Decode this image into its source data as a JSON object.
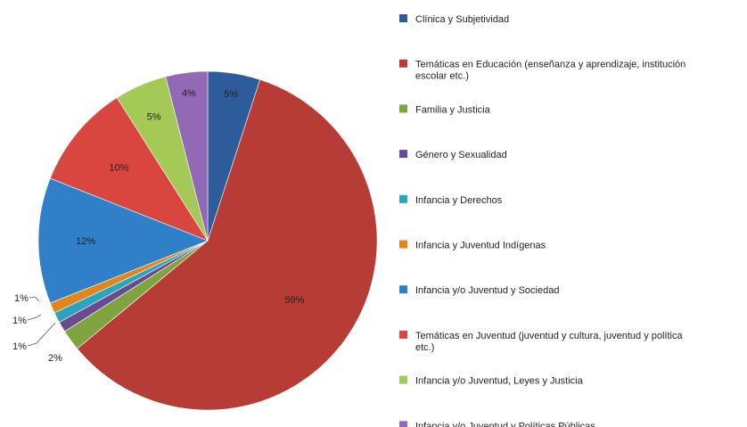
{
  "chart_data": {
    "type": "pie",
    "title": "",
    "categories": [
      "Clínica y Subjetividad",
      "Temáticas en Educación (enseñanza y aprendizaje, institución escolar etc.)",
      "Familia y Justicia",
      "Género y Sexualidad",
      "Infancia y Derechos",
      "Infancia y Juventud Indígenas",
      "Infancia y/o Juventud y Sociedad",
      "Temáticas en Juventud (juventud y cultura, juventud y política etc.)",
      "Infancia y/o Juventud, Leyes y Justicia",
      "Infancia y/o Juventud y Políticas Públicas"
    ],
    "values": [
      5,
      59,
      2,
      1,
      1,
      1,
      12,
      10,
      5,
      4
    ],
    "labels": [
      "5%",
      "59%",
      "2%",
      "1%",
      "1%",
      "1%",
      "12%",
      "10%",
      "5%",
      "4%"
    ],
    "colors": [
      "#2E5C9A",
      "#B73C36",
      "#7FA43F",
      "#6A4A93",
      "#2CA4BD",
      "#E0861D",
      "#2F7FC9",
      "#D9453F",
      "#A5C957",
      "#9169B4"
    ],
    "legend_labels": [
      [
        "Clínica y Subjetividad"
      ],
      [
        "Temáticas en Educación (enseñanza y aprendizaje, institución",
        "escolar etc.)"
      ],
      [
        "Familia y Justicia"
      ],
      [
        "Género y Sexualidad"
      ],
      [
        "Infancia y Derechos"
      ],
      [
        "Infancia y Juventud Indígenas"
      ],
      [
        "Infancia y/o Juventud y Sociedad"
      ],
      [
        "Temáticas en Juventud (juventud y cultura, juventud y política",
        "etc.)"
      ],
      [
        "Infancia y/o Juventud, Leyes y Justicia"
      ],
      [
        "Infancia y/o Juventud y Políticas Públicas"
      ]
    ],
    "legend_position": "right"
  }
}
